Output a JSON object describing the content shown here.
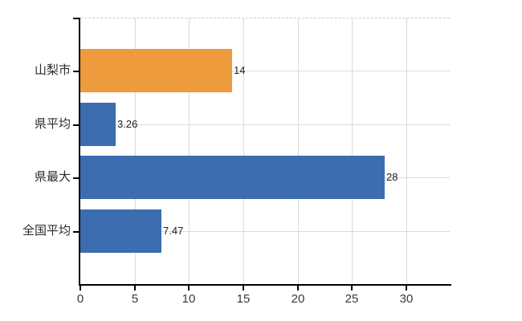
{
  "chart_data": {
    "type": "bar",
    "orientation": "horizontal",
    "title": "",
    "xlabel": "",
    "ylabel": "",
    "categories": [
      "山梨市",
      "県平均",
      "県最大",
      "全国平均"
    ],
    "values": [
      14,
      3.26,
      28,
      7.47
    ],
    "value_labels": [
      "14",
      "3.26",
      "28",
      "7.47"
    ],
    "bar_colors": [
      "#ED9B3D",
      "#3C6DB0",
      "#3C6DB0",
      "#3C6DB0"
    ],
    "x_ticks": [
      0,
      5,
      10,
      15,
      20,
      25,
      30
    ],
    "x_tick_labels": [
      "0",
      "5",
      "10",
      "15",
      "20",
      "25",
      "30"
    ],
    "xlim": [
      0,
      34
    ],
    "grid": true,
    "legend": "none",
    "colors": {
      "highlight_bar": "#ED9B3D",
      "default_bar": "#3C6DB0",
      "gridline": "#d7ddd6",
      "axis": "#000000",
      "background": "#ffffff"
    }
  }
}
